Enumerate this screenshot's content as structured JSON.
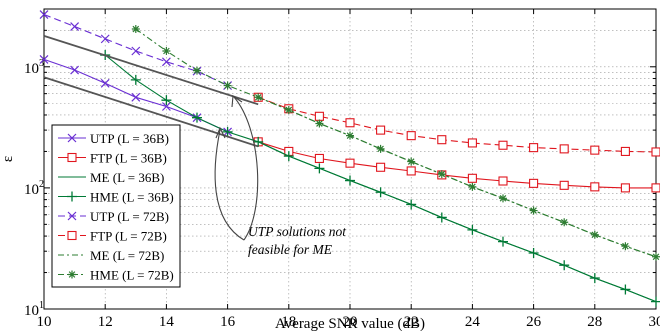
{
  "chart_data": {
    "type": "line",
    "xlabel": "Average SNR value (dB)",
    "ylabel": "ε",
    "y_scale": "log",
    "xlim": [
      10,
      30
    ],
    "ylim": [
      10,
      3000
    ],
    "x_ticks": [
      10,
      12,
      14,
      16,
      18,
      20,
      22,
      24,
      26,
      28,
      30
    ],
    "x_tick_labels": [
      "10",
      "12",
      "14",
      "16",
      "18",
      "20",
      "22",
      "24",
      "26",
      "28",
      "30"
    ],
    "y_ticks": [
      {
        "value": 10,
        "base": "10",
        "exp": "1"
      },
      {
        "value": 100,
        "base": "10",
        "exp": "2"
      },
      {
        "value": 1000,
        "base": "10",
        "exp": "3"
      }
    ],
    "grid": true,
    "legend_position": "left",
    "series": [
      {
        "name": "UTP (L = 36B)",
        "color": "#6a2fd3",
        "dash": "",
        "marker": "x",
        "x": [
          10,
          11,
          12,
          13,
          14,
          15,
          16
        ],
        "values": [
          1150,
          940,
          730,
          560,
          470,
          380,
          290
        ]
      },
      {
        "name": "FTP (L = 36B)",
        "color": "#e0161e",
        "dash": "",
        "marker": "square",
        "x": [
          17,
          18,
          19,
          20,
          21,
          22,
          23,
          24,
          25,
          26,
          27,
          28,
          29,
          30
        ],
        "values": [
          240,
          200,
          175,
          160,
          148,
          138,
          128,
          120,
          114,
          109,
          105,
          102,
          100,
          100
        ]
      },
      {
        "name": "ME (L = 36B)",
        "color": "#007a36",
        "dash": "",
        "marker": "none",
        "x": [
          17,
          18,
          19,
          20,
          21,
          22,
          23,
          24,
          25,
          26,
          27,
          28,
          29,
          30
        ],
        "values": [
          240,
          183,
          145,
          115,
          92,
          73,
          57,
          45,
          36,
          29,
          23,
          18,
          14.5,
          11.5
        ]
      },
      {
        "name": "HME (L = 36B)",
        "color": "#007a36",
        "dash": "",
        "marker": "plus",
        "x": [
          12,
          13,
          14,
          15,
          16,
          17,
          18,
          19,
          20,
          21,
          22,
          23,
          24,
          25,
          26,
          27,
          28,
          29,
          30
        ],
        "values": [
          1250,
          780,
          530,
          380,
          290,
          240,
          183,
          145,
          115,
          92,
          73,
          57,
          45,
          36,
          29,
          23,
          18,
          14.5,
          11.5
        ]
      },
      {
        "name": "UTP (L = 72B)",
        "color": "#6a2fd3",
        "dash": "7,4",
        "marker": "x",
        "x": [
          10,
          11,
          12,
          13,
          14,
          15,
          16
        ],
        "values": [
          2700,
          2150,
          1700,
          1350,
          1100,
          920,
          700
        ]
      },
      {
        "name": "FTP (L = 72B)",
        "color": "#e0161e",
        "dash": "7,4",
        "marker": "square",
        "x": [
          17,
          18,
          19,
          20,
          21,
          22,
          23,
          24,
          25,
          26,
          27,
          28,
          29,
          30
        ],
        "values": [
          560,
          450,
          390,
          345,
          300,
          270,
          250,
          235,
          225,
          215,
          210,
          205,
          200,
          198
        ]
      },
      {
        "name": "ME (L = 72B)",
        "color": "#2e7d32",
        "dash": "6,3,2,3",
        "marker": "none",
        "x": [
          17,
          18,
          19,
          20,
          21,
          22,
          23,
          24,
          25,
          26,
          27,
          28,
          29,
          30
        ],
        "values": [
          560,
          440,
          340,
          270,
          210,
          165,
          130,
          102,
          82,
          65,
          52,
          41,
          33,
          27
        ]
      },
      {
        "name": "HME (L = 72B)",
        "color": "#2e7d32",
        "dash": "6,3,2,3",
        "marker": "star",
        "x": [
          13,
          14,
          15,
          16,
          17,
          18,
          19,
          20,
          21,
          22,
          23,
          24,
          25,
          26,
          27,
          28,
          29,
          30
        ],
        "values": [
          2050,
          1350,
          930,
          700,
          560,
          440,
          340,
          270,
          210,
          165,
          130,
          102,
          82,
          65,
          52,
          41,
          33,
          27
        ]
      }
    ],
    "annotations": [
      {
        "lines": [
          "UTP solutions not",
          "feasible for ME"
        ],
        "italic": true
      }
    ]
  }
}
